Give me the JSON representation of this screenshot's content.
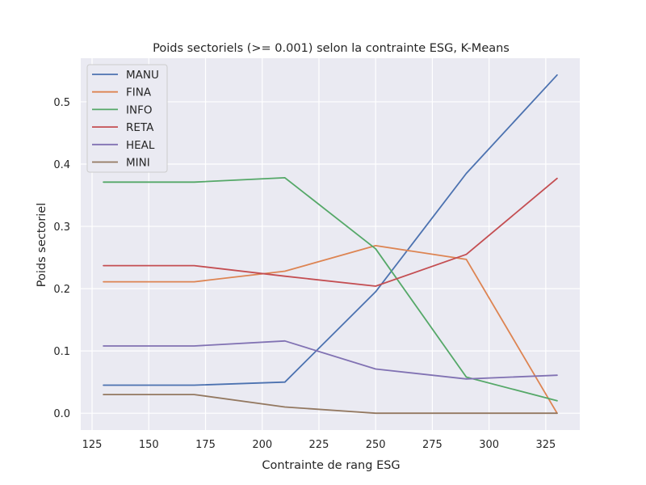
{
  "chart_data": {
    "type": "line",
    "title": "Poids sectoriels (>= 0.001) selon la contrainte ESG, K-Means",
    "xlabel": "Contrainte de rang ESG",
    "ylabel": "Poids sectoriel",
    "xlim": [
      120,
      340
    ],
    "ylim": [
      -0.027,
      0.57
    ],
    "xticks": [
      125,
      150,
      175,
      200,
      225,
      250,
      275,
      300,
      325
    ],
    "yticks": [
      0.0,
      0.1,
      0.2,
      0.3,
      0.4,
      0.5
    ],
    "ytick_labels": [
      "0.0",
      "0.1",
      "0.2",
      "0.3",
      "0.4",
      "0.5"
    ],
    "grid": true,
    "legend_position": "top-left",
    "x": [
      130,
      170,
      210,
      250,
      290,
      330
    ],
    "series": [
      {
        "name": "MANU",
        "color": "#4c72b0",
        "values": [
          0.045,
          0.045,
          0.05,
          0.195,
          0.385,
          0.543
        ]
      },
      {
        "name": "FINA",
        "color": "#dd8452",
        "values": [
          0.211,
          0.211,
          0.228,
          0.269,
          0.247,
          0.0
        ]
      },
      {
        "name": "INFO",
        "color": "#55a868",
        "values": [
          0.371,
          0.371,
          0.378,
          0.264,
          0.058,
          0.02
        ]
      },
      {
        "name": "RETA",
        "color": "#c44e52",
        "values": [
          0.237,
          0.237,
          0.22,
          0.204,
          0.255,
          0.377
        ]
      },
      {
        "name": "HEAL",
        "color": "#8172b3",
        "values": [
          0.108,
          0.108,
          0.116,
          0.071,
          0.055,
          0.061
        ]
      },
      {
        "name": "MINI",
        "color": "#937860",
        "values": [
          0.03,
          0.03,
          0.01,
          0.0,
          0.0,
          0.0
        ]
      }
    ],
    "style": {
      "background": "#ffffff",
      "plot_background": "#eaeaf2",
      "grid_color": "#ffffff",
      "legend_background": "#eaeaf2",
      "legend_border": "#cccccc"
    }
  }
}
